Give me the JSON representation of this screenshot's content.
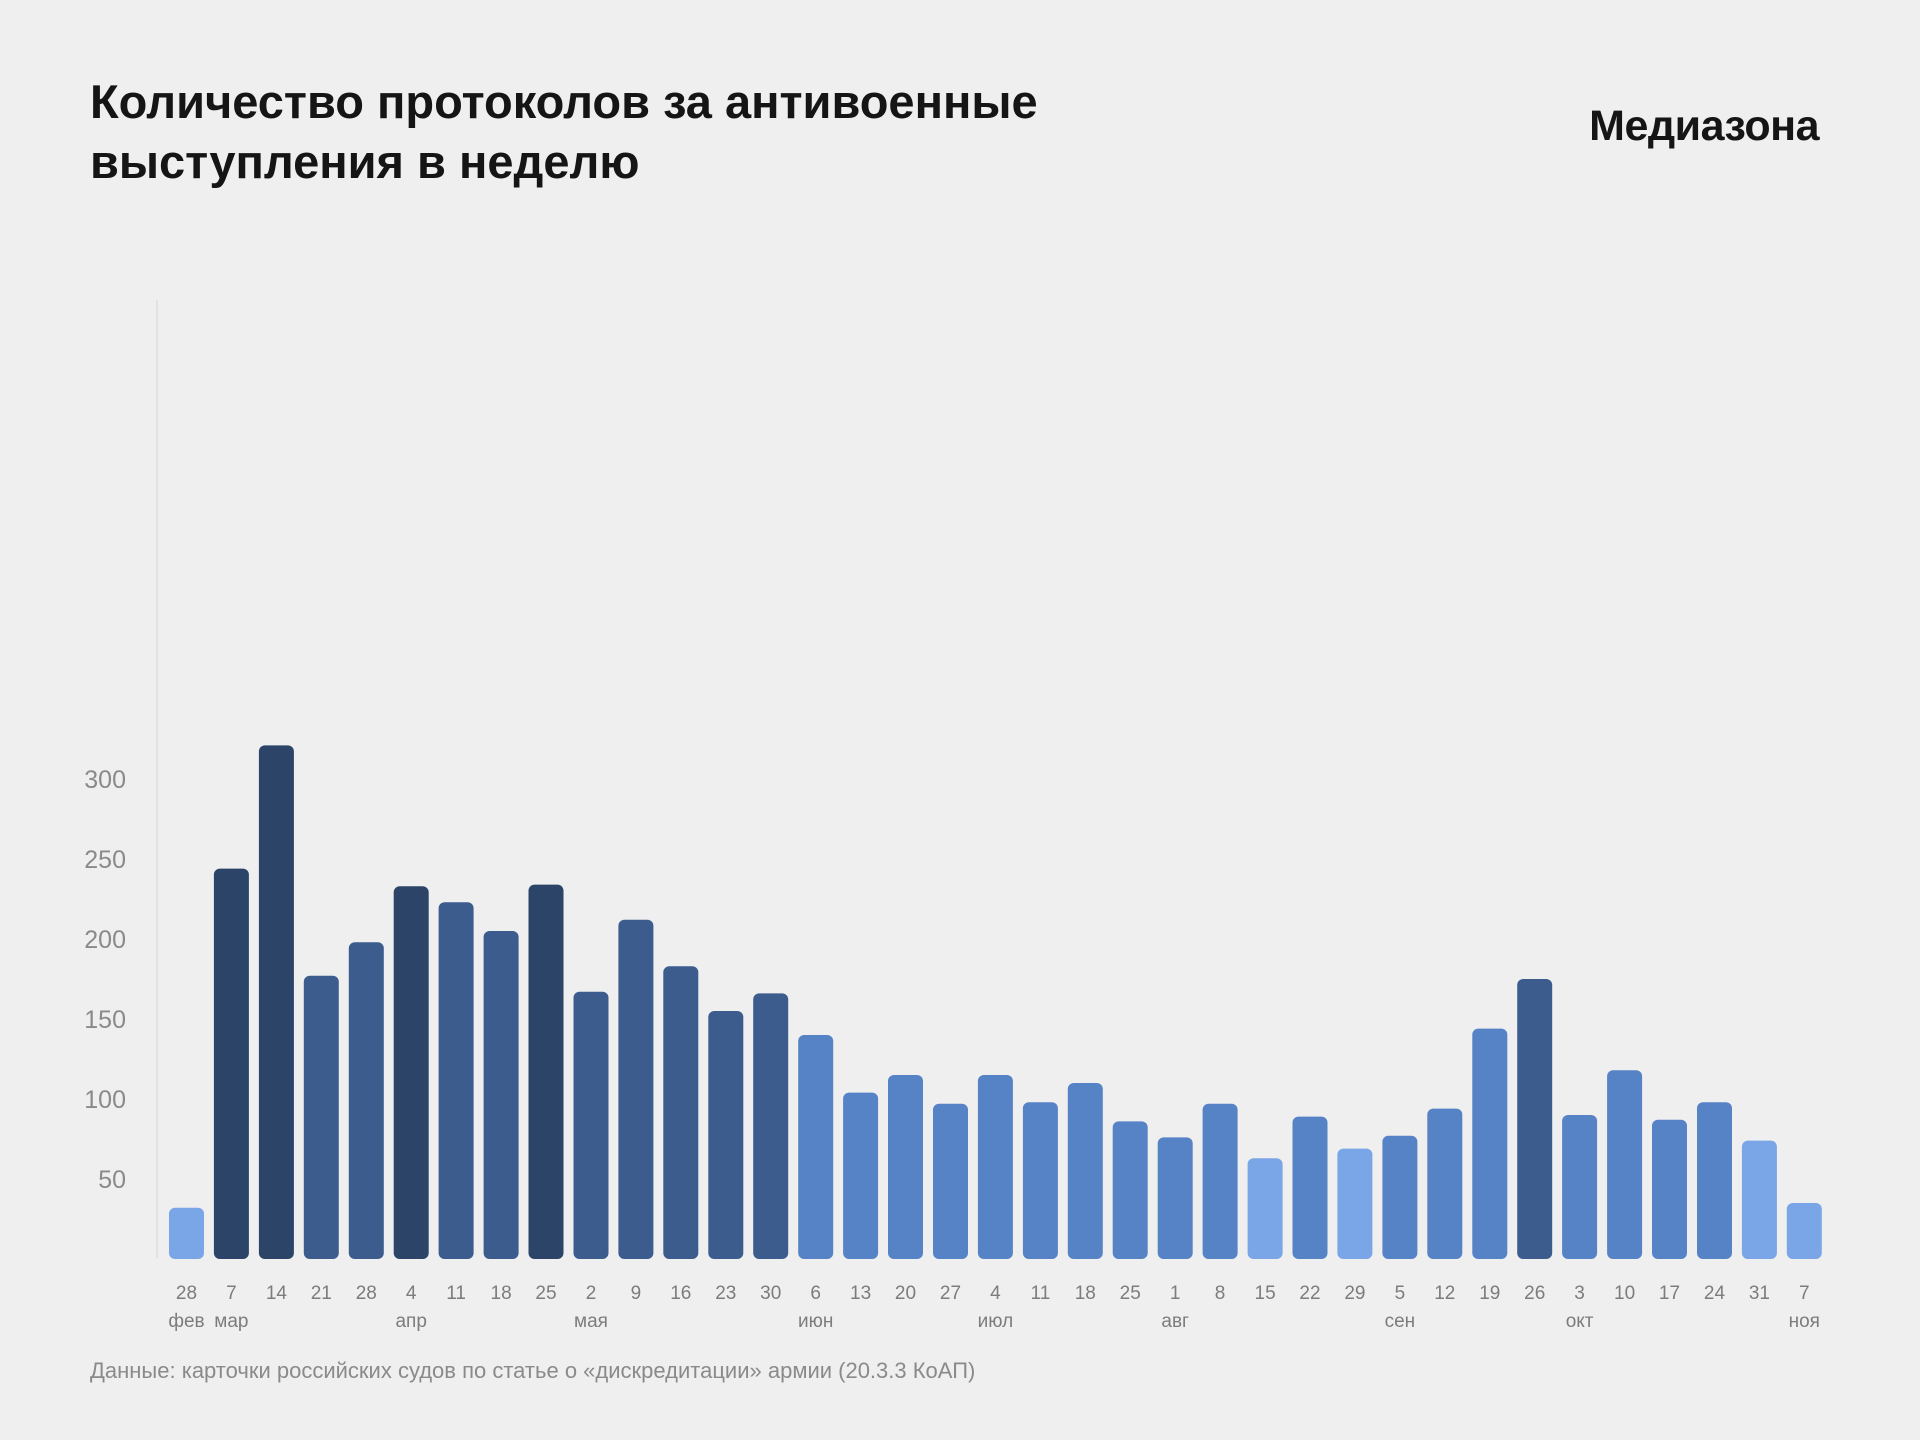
{
  "title_lines": [
    "Количество протоколов за антивоенные",
    "выступления в неделю"
  ],
  "brand": "Медиазона",
  "note": "Данные: карточки российских судов по статье о «дискредитации» армии (20.3.3 КоАП)",
  "colors": {
    "background": "#efefef",
    "darkest": "#2c4468",
    "dark": "#3c5c8e",
    "medium": "#5682c6",
    "light": "#7aa5e6",
    "text": "#151515",
    "muted": "#8a8a8a"
  },
  "chart_data": {
    "type": "bar",
    "title": "Количество протоколов за антивоенные выступления в неделю",
    "ylim": [
      0,
      320
    ],
    "yticks": [
      50,
      100,
      150,
      200,
      250,
      300
    ],
    "categories": [
      "28",
      "7",
      "14",
      "21",
      "28",
      "4",
      "11",
      "18",
      "25",
      "2",
      "9",
      "16",
      "23",
      "30",
      "6",
      "13",
      "20",
      "27",
      "4",
      "11",
      "18",
      "25",
      "1",
      "8",
      "15",
      "22",
      "29",
      "5",
      "12",
      "19",
      "26",
      "3",
      "10",
      "17",
      "24",
      "31",
      "7"
    ],
    "month_labels": [
      "фев",
      "мар",
      "",
      "",
      "",
      "апр",
      "",
      "",
      "",
      "мая",
      "",
      "",
      "",
      "",
      "июн",
      "",
      "",
      "",
      "июл",
      "",
      "",
      "",
      "авг",
      "",
      "",
      "",
      "",
      "сен",
      "",
      "",
      "",
      "окт",
      "",
      "",
      "",
      "",
      "ноя"
    ],
    "values": [
      32,
      244,
      321,
      177,
      198,
      233,
      223,
      205,
      234,
      167,
      212,
      183,
      155,
      166,
      140,
      104,
      115,
      97,
      115,
      98,
      110,
      86,
      76,
      97,
      63,
      89,
      69,
      77,
      94,
      144,
      175,
      90,
      118,
      87,
      98,
      74,
      35
    ],
    "shade": [
      "light",
      "darkest",
      "darkest",
      "dark",
      "dark",
      "darkest",
      "dark",
      "dark",
      "darkest",
      "dark",
      "dark",
      "dark",
      "dark",
      "dark",
      "medium",
      "medium",
      "medium",
      "medium",
      "medium",
      "medium",
      "medium",
      "medium",
      "medium",
      "medium",
      "light",
      "medium",
      "light",
      "medium",
      "medium",
      "medium",
      "dark",
      "medium",
      "medium",
      "medium",
      "medium",
      "light",
      "light"
    ],
    "grid": false
  }
}
